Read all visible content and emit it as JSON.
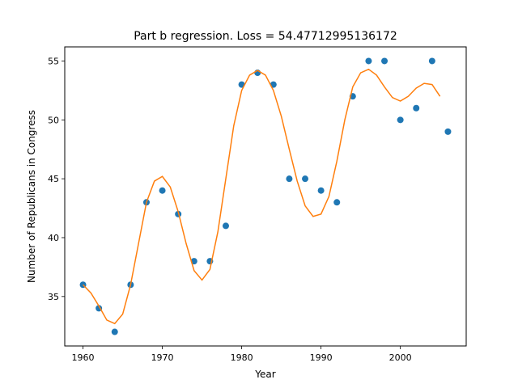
{
  "chart_data": {
    "type": "scatter",
    "title": "Part b regression. Loss = 54.47712995136172",
    "xlabel": "Year",
    "ylabel": "Number of Republicans in Congress",
    "xlim": [
      1957.7,
      2008.3
    ],
    "ylim": [
      30.8,
      56.2
    ],
    "xticks": [
      1960,
      1970,
      1980,
      1990,
      2000
    ],
    "yticks": [
      35,
      40,
      45,
      50,
      55
    ],
    "grid": false,
    "colors": {
      "points": "#1f77b4",
      "curve": "#ff7f0e"
    },
    "series": [
      {
        "kind": "points",
        "x": [
          1960,
          1962,
          1964,
          1966,
          1968,
          1970,
          1972,
          1974,
          1976,
          1978,
          1980,
          1982,
          1984,
          1986,
          1988,
          1990,
          1992,
          1994,
          1996,
          1998,
          2000,
          2002,
          2004,
          2006
        ],
        "y": [
          36,
          34,
          32,
          36,
          43,
          44,
          42,
          38,
          38,
          41,
          53,
          54,
          53,
          45,
          45,
          44,
          43,
          52,
          55,
          55,
          50,
          51,
          55,
          49
        ]
      },
      {
        "kind": "curve",
        "x": [
          1960,
          1961,
          1962,
          1963,
          1964,
          1965,
          1966,
          1967,
          1968,
          1969,
          1970,
          1971,
          1972,
          1973,
          1974,
          1975,
          1976,
          1977,
          1978,
          1979,
          1980,
          1981,
          1982,
          1983,
          1984,
          1985,
          1986,
          1987,
          1988,
          1989,
          1990,
          1991,
          1992,
          1993,
          1994,
          1995,
          1996,
          1997,
          1998,
          1999,
          2000,
          2001,
          2002,
          2003,
          2004,
          2005
        ],
        "y": [
          36.0,
          35.3,
          34.2,
          33.0,
          32.7,
          33.5,
          36.0,
          39.5,
          43.0,
          44.8,
          45.2,
          44.3,
          42.2,
          39.5,
          37.2,
          36.4,
          37.3,
          40.5,
          45.0,
          49.5,
          52.5,
          53.8,
          54.2,
          53.8,
          52.5,
          50.3,
          47.5,
          44.8,
          42.7,
          41.8,
          42.0,
          43.5,
          46.5,
          50.0,
          52.8,
          54.0,
          54.3,
          53.8,
          52.8,
          51.9,
          51.6,
          52.0,
          52.7,
          53.1,
          53.0,
          52.0
        ]
      }
    ]
  }
}
